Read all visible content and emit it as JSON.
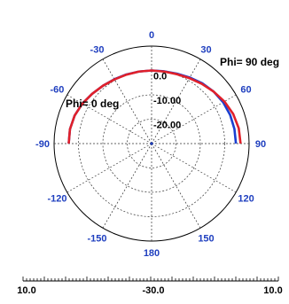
{
  "chart_data": {
    "type": "line",
    "coordinate_system": "polar",
    "angle_ticks": [
      "0",
      "30",
      "60",
      "90",
      "150",
      "180",
      "-150",
      "-120",
      "-90",
      "-60",
      "-30",
      "120"
    ],
    "angle_tick_values": [
      0,
      30,
      60,
      90,
      150,
      180,
      -150,
      -120,
      -90,
      -60,
      -30,
      120
    ],
    "ring_labels": [
      "0.0",
      "-10.00",
      "-20.00"
    ],
    "ring_values": [
      0,
      -10,
      -20,
      -30
    ],
    "r_range": [
      -30,
      10
    ],
    "bottom_axis_ticks": [
      "10.0",
      "-30.0",
      "10.0"
    ],
    "grid": true,
    "annotations": [
      "Phi=  0 deg",
      "Phi=  90 deg"
    ],
    "series": [
      {
        "color": "#e0202a",
        "theta": [
          -90,
          -80,
          -70,
          -60,
          -50,
          -40,
          -30,
          -20,
          -10,
          0,
          10,
          20,
          30,
          40,
          50,
          60,
          70,
          80,
          90
        ],
        "r": [
          4.0,
          4.0,
          3.6,
          2.8,
          1.8,
          1.0,
          0.4,
          0.1,
          0.0,
          0.0,
          0.0,
          0.3,
          1.0,
          2.0,
          3.2,
          4.5,
          5.6,
          6.3,
          6.5
        ]
      },
      {
        "color": "#1b3fd0",
        "theta": [
          -90,
          -80,
          -70,
          -60,
          -50,
          -40,
          -30,
          -20,
          -10,
          0,
          10,
          20,
          30,
          40,
          50,
          60,
          70,
          80,
          90
        ],
        "r": [
          4.0,
          4.0,
          3.6,
          2.8,
          1.8,
          1.0,
          0.5,
          0.2,
          0.0,
          0.0,
          0.1,
          0.5,
          1.3,
          2.3,
          3.2,
          3.9,
          4.3,
          4.5,
          4.6
        ]
      }
    ]
  }
}
